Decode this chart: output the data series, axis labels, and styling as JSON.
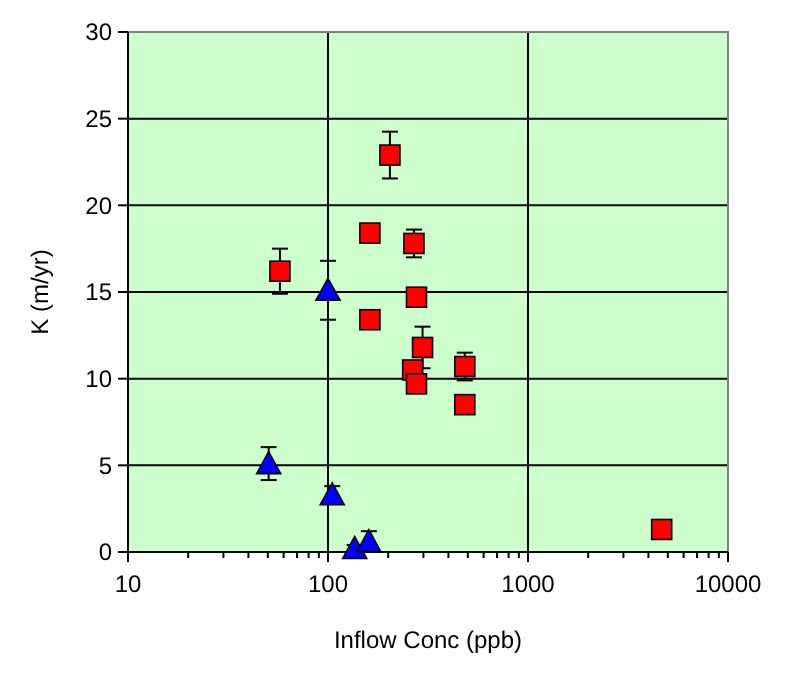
{
  "chart_data": {
    "type": "scatter",
    "xlabel": "Inflow Conc (ppb)",
    "ylabel": "K (m/yr)",
    "log": "x",
    "grid": true,
    "xlim": [
      10,
      10000
    ],
    "ylim": [
      0,
      30
    ],
    "xticks": [
      10,
      {
        "value": 20,
        "label": null
      },
      {
        "value": 30,
        "label": null
      },
      {
        "value": 40,
        "label": null
      },
      {
        "value": 50,
        "label": null
      },
      {
        "value": 60,
        "label": null
      },
      {
        "value": 70,
        "label": null
      },
      {
        "value": 80,
        "label": null
      },
      {
        "value": 90,
        "label": null
      },
      100,
      {
        "value": 200,
        "label": null
      },
      {
        "value": 300,
        "label": null
      },
      {
        "value": 400,
        "label": null
      },
      {
        "value": 500,
        "label": null
      },
      {
        "value": 600,
        "label": null
      },
      {
        "value": 700,
        "label": null
      },
      {
        "value": 800,
        "label": null
      },
      {
        "value": 900,
        "label": null
      },
      1000,
      {
        "value": 2000,
        "label": null
      },
      {
        "value": 3000,
        "label": null
      },
      {
        "value": 4000,
        "label": null
      },
      {
        "value": 5000,
        "label": null
      },
      {
        "value": 6000,
        "label": null
      },
      {
        "value": 7000,
        "label": null
      },
      {
        "value": 8000,
        "label": null
      },
      {
        "value": 9000,
        "label": null
      },
      10000
    ],
    "yticks": [
      0,
      5,
      10,
      15,
      20,
      25,
      30
    ],
    "series": [
      {
        "color": "#ff0000",
        "marker": "square",
        "x": [
          57.5,
          204,
          162,
          269,
          162,
          277,
          297,
          265,
          277,
          483,
          483,
          4660
        ],
        "values": [
          16.2,
          22.9,
          18.4,
          17.8,
          13.4,
          14.7,
          11.8,
          10.5,
          9.7,
          10.7,
          8.5,
          1.3
        ],
        "errors": [
          1.3,
          1.35,
          null,
          0.8,
          null,
          null,
          1.2,
          null,
          null,
          0.8,
          null,
          null
        ]
      },
      {
        "color": "#0000ff",
        "marker": "triangle",
        "x": [
          100,
          50.5,
          105,
          136,
          160
        ],
        "values": [
          15.1,
          5.1,
          3.3,
          0.2,
          0.6
        ],
        "errors": [
          1.7,
          0.95,
          0.5,
          0.2,
          0.6
        ]
      }
    ]
  }
}
